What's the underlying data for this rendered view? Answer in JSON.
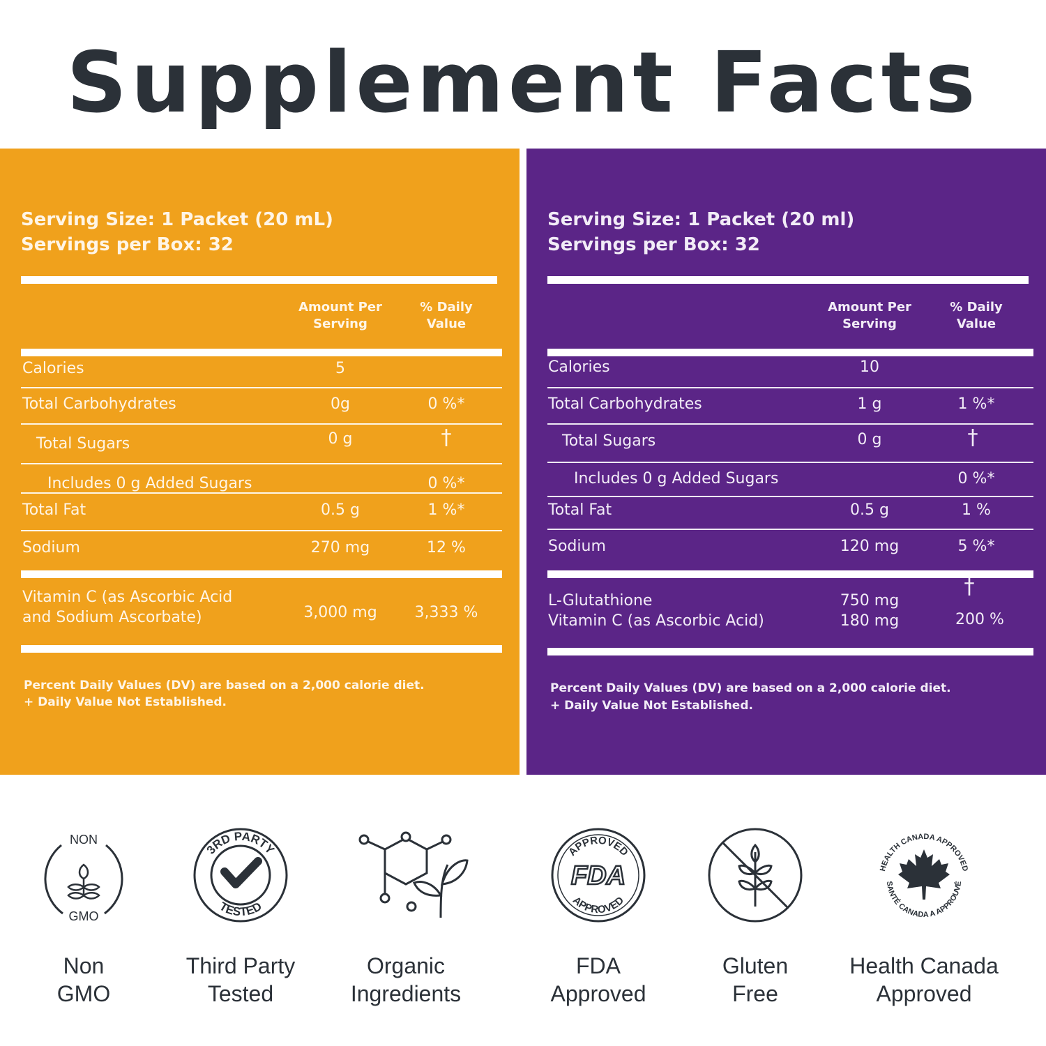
{
  "title": "Supplement Facts",
  "panels": [
    {
      "color": "#f0a11c",
      "serving_size": "Serving Size: 1 Packet (20 mL)",
      "servings_per_box": "Servings per Box: 32",
      "col_amount": "Amount Per Serving",
      "col_dv": "% Daily Value",
      "rows": [
        {
          "name": "Calories",
          "amount": "5",
          "dv": ""
        },
        {
          "name": "Total Carbohydrates",
          "amount": "0g",
          "dv": "0 %*"
        },
        {
          "name": "Total Sugars",
          "amount": "0 g",
          "dv": "†"
        },
        {
          "name": "Includes 0 g Added Sugars",
          "amount": "",
          "dv": "0 %*"
        },
        {
          "name": "Total Fat",
          "amount": "0.5 g",
          "dv": "1 %*"
        },
        {
          "name": "Sodium",
          "amount": "270 mg",
          "dv": "12 %"
        }
      ],
      "special": {
        "name_line1": "Vitamin C (as Ascorbic Acid",
        "name_line2": "and Sodium  Ascorbate)",
        "amount": "3,000 mg",
        "dv": "3,333 %"
      },
      "footnote1": "Percent Daily Values (DV) are based on a 2,000 calorie diet.",
      "footnote2": "+ Daily Value Not Established."
    },
    {
      "color": "#5b2587",
      "serving_size": "Serving Size: 1 Packet (20 ml)",
      "servings_per_box": "Servings per Box: 32",
      "col_amount": "Amount Per Serving",
      "col_dv": "% Daily Value",
      "rows": [
        {
          "name": "Calories",
          "amount": "10",
          "dv": ""
        },
        {
          "name": "Total Carbohydrates",
          "amount": "1 g",
          "dv": "1 %*"
        },
        {
          "name": "Total Sugars",
          "amount": "0 g",
          "dv": "†"
        },
        {
          "name": "Includes 0 g Added Sugars",
          "amount": "",
          "dv": "0 %*"
        },
        {
          "name": "Total Fat",
          "amount": "0.5 g",
          "dv": "1 %"
        },
        {
          "name": "Sodium",
          "amount": "120 mg",
          "dv": "5 %*"
        }
      ],
      "special": {
        "name_line1": "L-Glutathione",
        "name_line2": "Vitamin C (as Ascorbic Acid)",
        "amount_line1": "750 mg",
        "amount_line2": "180 mg",
        "dv_line1": "†",
        "dv_line2": "200 %"
      },
      "footnote1": "Percent Daily Values (DV) are based on a 2,000 calorie diet.",
      "footnote2": "+ Daily Value Not Established."
    }
  ],
  "badges": [
    {
      "icon": "non-gmo-icon",
      "top_text": "NON",
      "bottom_text": "GMO",
      "label1": "Non",
      "label2": "GMO"
    },
    {
      "icon": "third-party-tested-icon",
      "top_text": "3RD PARTY",
      "bottom_text": "TESTED",
      "label1": "Third Party",
      "label2": "Tested"
    },
    {
      "icon": "organic-ingredients-icon",
      "label1": "Organic",
      "label2": "Ingredients"
    },
    {
      "icon": "fda-approved-icon",
      "top_text": "APPROVED",
      "center_text": "FDA",
      "bottom_text": "APPROVED",
      "label1": "FDA",
      "label2": "Approved"
    },
    {
      "icon": "gluten-free-icon",
      "label1": "Gluten",
      "label2": "Free"
    },
    {
      "icon": "health-canada-icon",
      "top_text": "HEALTH CANADA APPROVED",
      "bottom_text": "SANTÉ CANADA A APPROUVÉ",
      "label1": "Health Canada",
      "label2": "Approved"
    }
  ]
}
